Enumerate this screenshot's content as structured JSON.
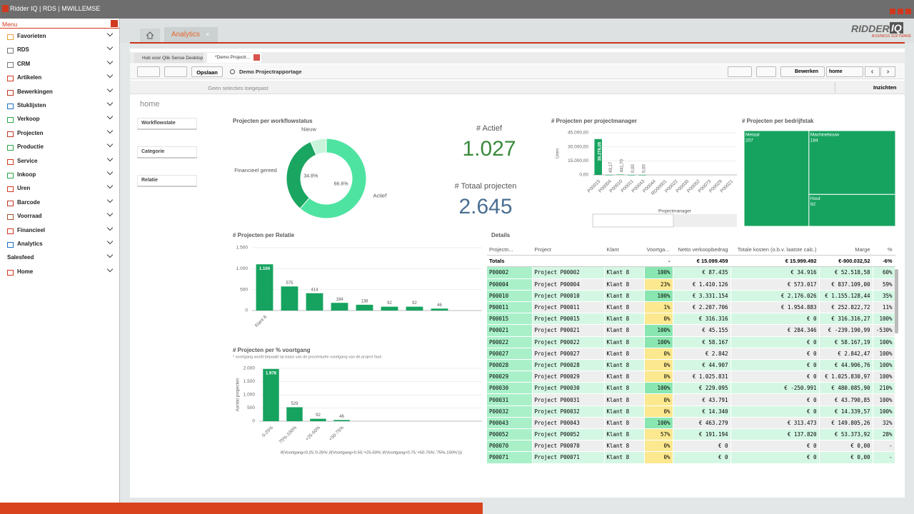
{
  "window": {
    "title": "Ridder IQ | RDS | MWILLEMSE"
  },
  "menu": {
    "title": "Menu",
    "items": [
      "Favorieten",
      "RDS",
      "CRM",
      "Artikelen",
      "Bewerkingen",
      "Stuklijsten",
      "Verkoop",
      "Projecten",
      "Productie",
      "Service",
      "Inkoop",
      "Uren",
      "Barcode",
      "Voorraad",
      "Financieel",
      "Analytics",
      "Salesfeed",
      "Home"
    ]
  },
  "tabs": [
    "Analytics"
  ],
  "logo": {
    "brand": "RIDDER",
    "product": "IQ",
    "tagline": "BUSINESS SOFTWARE"
  },
  "qlik": {
    "tabs": [
      "Hub voor Qlik Sense Desktop",
      "*Demo Projectr..."
    ],
    "toolbar": {
      "save": "Opslaan",
      "app": "Demo Projectrapportage",
      "edit": "Bewerken",
      "sheet": "home",
      "insights": "Inzichten"
    },
    "selections": "Geen selecties toegepast",
    "sheet_title": "home",
    "filters": [
      "Workflowstate",
      "Categorie",
      "Relatie"
    ]
  },
  "kpis": [
    {
      "title": "# Actief",
      "value": 1027,
      "value_label": "1.027",
      "color": "#3b8a3e"
    },
    {
      "title": "# Totaal projecten",
      "value": 2645,
      "value_label": "2.645",
      "color": "#4a6f91"
    }
  ],
  "chart_data": [
    {
      "type": "pie",
      "title": "Projecten per workflowstatus",
      "categories": [
        "Actief",
        "Financieel gereed",
        "Nieuw"
      ],
      "values": [
        66.6,
        34.8,
        7
      ],
      "value_labels": [
        "66.6%",
        "34.8%",
        null
      ],
      "colors": [
        "#4fe3a2",
        "#1aa561",
        "#c8f4dc"
      ]
    },
    {
      "type": "bar",
      "title": "# Projecten per projectmanager",
      "ylabel": "Uren",
      "xlabel": "Projectmanager",
      "categories": [
        "P00015",
        "P00004",
        "P00010",
        "P00011",
        "P00043",
        "P00044",
        "RD00001",
        "P00022",
        "P00030",
        "P00052",
        "P00073",
        "P00029",
        "P00021"
      ],
      "values": [
        38278.05,
        43.17,
        441.7,
        0,
        0,
        null,
        null,
        null,
        null,
        null,
        null,
        null,
        null
      ],
      "value_labels": [
        "38.278,05",
        "43,17",
        "441,70",
        "0,00",
        "0,00",
        null,
        null,
        null,
        null,
        null,
        null,
        null,
        null
      ],
      "color": "#16a35f",
      "ylim": [
        0,
        45000
      ],
      "yticks": [
        {
          "value": 0,
          "label": "0,00"
        },
        {
          "value": 15000,
          "label": "15.000,00"
        },
        {
          "value": 30000,
          "label": "30.000,00"
        },
        {
          "value": 45000,
          "label": "45.000,00"
        }
      ],
      "grid": true
    },
    {
      "type": "treemap",
      "title": "# Projecten per bedrijfstak",
      "categories": [
        "Metaal",
        "Machinebouw",
        "Hout"
      ],
      "values": [
        207,
        184,
        92
      ],
      "color": "#16a35f"
    },
    {
      "type": "bar",
      "title": "# Projecten per Relatie",
      "categories": [
        "Klant 8",
        null,
        null,
        null,
        null,
        null,
        null,
        null
      ],
      "values": [
        1104,
        575,
        414,
        184,
        138,
        92,
        92,
        46
      ],
      "value_labels": [
        "1.104",
        "575",
        "414",
        "184",
        "138",
        "92",
        "92",
        "46"
      ],
      "color": "#16a35f",
      "ylim": [
        0,
        1500
      ],
      "yticks": [
        0,
        500,
        {
          "value": 1000,
          "label": "1.000"
        },
        {
          "value": 1500,
          "label": "1.500"
        }
      ],
      "grid": true
    },
    {
      "type": "bar",
      "title": "# Projecten per % voortgang",
      "subtitle": "* voortgang wordt bepaald op basis van de procentuele voortgang van de project fase",
      "ylabel": "Aantal projecten",
      "xlabel": "if(Voortgang<0.25,'0-25%',if(Voortgang<0.50,'+25-50%',if(Voortgang<0.75,'+50-75%','75%-100%')))",
      "categories": [
        "0-25%",
        "75%-100%",
        "+25-50%",
        "+50-75%"
      ],
      "values": [
        1978,
        529,
        92,
        46
      ],
      "value_labels": [
        "1.978",
        "529",
        "92",
        "46"
      ],
      "color": "#16a35f",
      "ylim": [
        0,
        2000
      ],
      "yticks": [
        0,
        500,
        {
          "value": 1000,
          "label": "1.000"
        },
        {
          "value": 1500,
          "label": "1.500"
        },
        {
          "value": 2000,
          "label": "2.000"
        }
      ],
      "grid": true
    }
  ],
  "details": {
    "title": "Details",
    "columns": [
      "Projectn...",
      "Project",
      "Klant",
      "Voortga...",
      "Netto verkoopbedrag",
      "Totale kosten (o.b.v. laatste calc.)",
      "Marge",
      "%"
    ],
    "totals": {
      "label": "Totals",
      "voortgang": "-",
      "netto": "€ 15.099.459",
      "kosten": "€ 15.999.492",
      "marge": "€-900.032,52",
      "pct": "-6%"
    },
    "rows": [
      [
        "P00002",
        "Project P00002",
        "Klant 8",
        "100%",
        "€ 87.435",
        "€ 34.916",
        "€ 52.518,58",
        "60%"
      ],
      [
        "P00004",
        "Project P00004",
        "Klant 8",
        "23%",
        "€ 1.410.126",
        "€ 573.017",
        "€ 837.109,00",
        "59%"
      ],
      [
        "P00010",
        "Project P00010",
        "Klant 8",
        "100%",
        "€ 3.331.154",
        "€ 2.176.026",
        "€ 1.155.128,44",
        "35%"
      ],
      [
        "P00011",
        "Project P00011",
        "Klant 8",
        "1%",
        "€ 2.207.706",
        "€ 1.954.883",
        "€ 252.822,72",
        "11%"
      ],
      [
        "P00015",
        "Project P00015",
        "Klant 8",
        "0%",
        "€ 316.316",
        "€ 0",
        "€ 316.316,27",
        "100%"
      ],
      [
        "P00021",
        "Project P00021",
        "Klant 8",
        "100%",
        "€ 45.155",
        "€ 284.346",
        "€ -239.190,99",
        "-530%"
      ],
      [
        "P00022",
        "Project P00022",
        "Klant 8",
        "100%",
        "€ 58.167",
        "€ 0",
        "€ 58.167,19",
        "100%"
      ],
      [
        "P00027",
        "Project P00027",
        "Klant 8",
        "0%",
        "€ 2.842",
        "€ 0",
        "€ 2.842,47",
        "100%"
      ],
      [
        "P00028",
        "Project P00028",
        "Klant 8",
        "0%",
        "€ 44.907",
        "€ 0",
        "€ 44.906,76",
        "100%"
      ],
      [
        "P00029",
        "Project P00029",
        "Klant 8",
        "0%",
        "€ 1.025.831",
        "€ 0",
        "€ 1.025.830,97",
        "100%"
      ],
      [
        "P00030",
        "Project P00030",
        "Klant 8",
        "100%",
        "€ 229.095",
        "€ -250.991",
        "€ 480.085,90",
        "210%"
      ],
      [
        "P00031",
        "Project P00031",
        "Klant 8",
        "0%",
        "€ 43.791",
        "€ 0",
        "€ 43.790,85",
        "100%"
      ],
      [
        "P00032",
        "Project P00032",
        "Klant 8",
        "0%",
        "€ 14.340",
        "€ 0",
        "€ 14.339,57",
        "100%"
      ],
      [
        "P00043",
        "Project P00043",
        "Klant 8",
        "100%",
        "€ 463.279",
        "€ 313.473",
        "€ 149.805,26",
        "32%"
      ],
      [
        "P00052",
        "Project P00052",
        "Klant 8",
        "57%",
        "€ 191.194",
        "€ 137.820",
        "€ 53.373,92",
        "28%"
      ],
      [
        "P00070",
        "Project P00070",
        "Klant 8",
        "0%",
        "€ 0",
        "€ 0",
        "€ 0,00",
        "-"
      ],
      [
        "P00071",
        "Project P00071",
        "Klant 8",
        "0%",
        "€ 0",
        "€ 0",
        "€ 0,00",
        "-"
      ]
    ]
  }
}
